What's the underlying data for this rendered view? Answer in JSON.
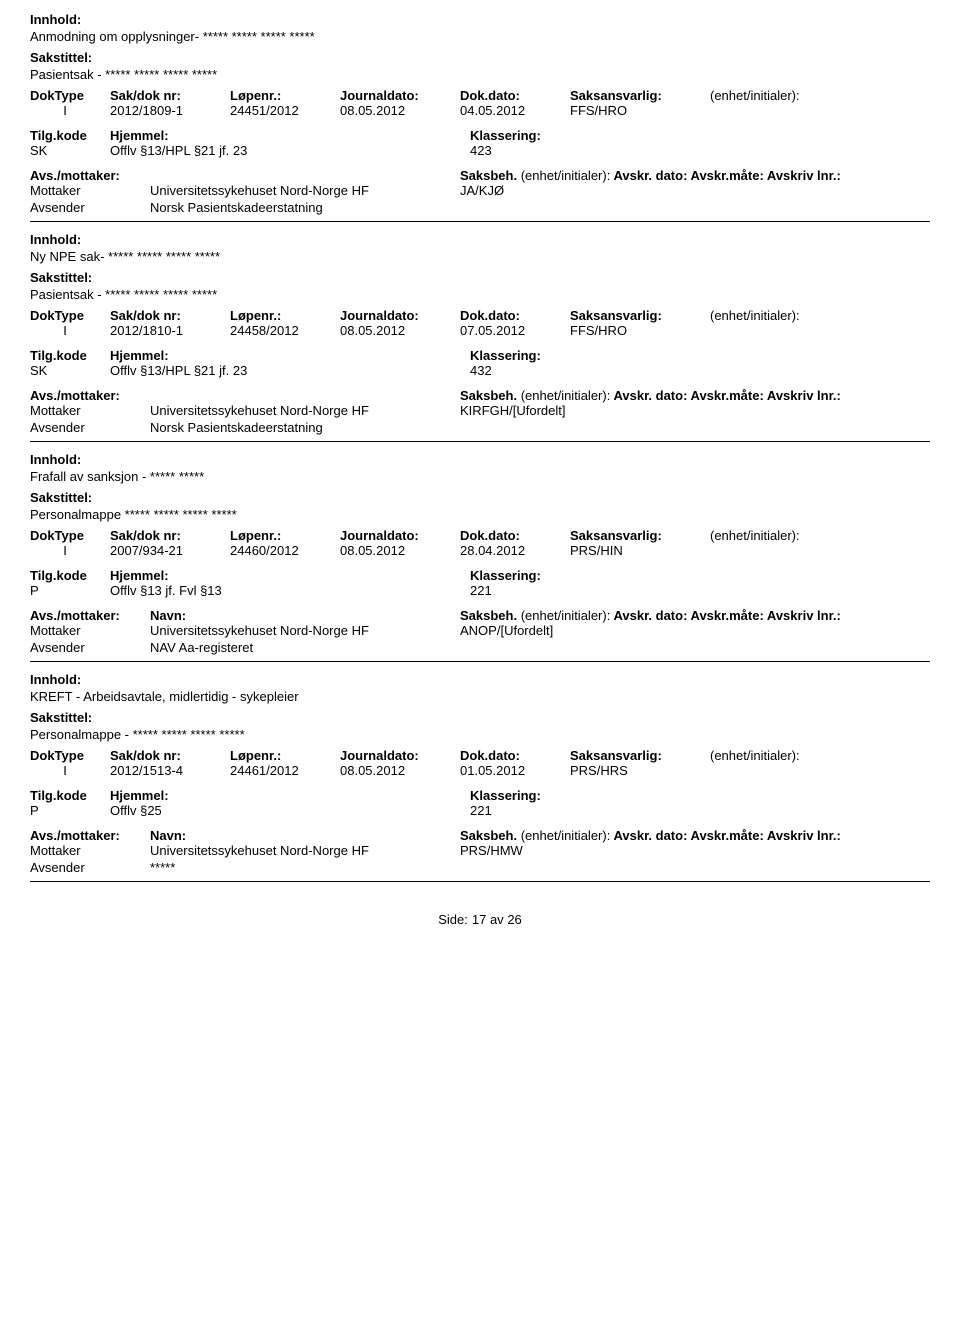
{
  "labels": {
    "innhold": "Innhold:",
    "sakstittel": "Sakstittel:",
    "doktype": "DokType",
    "sakdoknr": "Sak/dok nr:",
    "lopenr": "Løpenr.:",
    "journaldato": "Journaldato:",
    "dokdato": "Dok.dato:",
    "saksansvarlig": "Saksansvarlig:",
    "enhetinit": "(enhet/initialer):",
    "tilgkode": "Tilg.kode",
    "hjemmel": "Hjemmel:",
    "klassering": "Klassering:",
    "avsmottaker": "Avs./mottaker:",
    "navn": "Navn:",
    "saksbeh": "Saksbeh.",
    "saksbeh_ei": "(enhet/initialer):",
    "avskr_dato": "Avskr. dato:",
    "avskr_maate": "Avskr.måte:",
    "avskriv_lnr": "Avskriv lnr.:",
    "mottaker": "Mottaker",
    "avsender": "Avsender",
    "side": "Side:",
    "av": "av"
  },
  "entries": [
    {
      "innhold": "Anmodning om opplysninger- ***** ***** ***** *****",
      "sakstittel": "Pasientsak - ***** ***** ***** *****",
      "doktype": "I",
      "sakdoknr": "2012/1809-1",
      "lopenr": "24451/2012",
      "journaldato": "08.05.2012",
      "dokdato": "04.05.2012",
      "saksansvarlig": "FFS/HRO",
      "tilgkode": "SK",
      "hjemmel": "Offlv §13/HPL §21 jf. 23",
      "klassering": "423",
      "show_nav_labels": false,
      "mottaker_navn": "Universitetssykehuset Nord-Norge HF",
      "mottaker_saksbeh": "JA/KJØ",
      "avsender_navn": "Norsk Pasientskadeerstatning"
    },
    {
      "innhold": "Ny NPE sak- ***** ***** ***** *****",
      "sakstittel": "Pasientsak - ***** ***** ***** *****",
      "doktype": "I",
      "sakdoknr": "2012/1810-1",
      "lopenr": "24458/2012",
      "journaldato": "08.05.2012",
      "dokdato": "07.05.2012",
      "saksansvarlig": "FFS/HRO",
      "tilgkode": "SK",
      "hjemmel": "Offlv §13/HPL §21 jf. 23",
      "klassering": "432",
      "show_nav_labels": false,
      "mottaker_navn": "Universitetssykehuset Nord-Norge HF",
      "mottaker_saksbeh": "KIRFGH/[Ufordelt]",
      "avsender_navn": "Norsk Pasientskadeerstatning"
    },
    {
      "innhold": "Frafall av sanksjon - ***** *****",
      "sakstittel": "Personalmappe ***** ***** ***** *****",
      "doktype": "I",
      "sakdoknr": "2007/934-21",
      "lopenr": "24460/2012",
      "journaldato": "08.05.2012",
      "dokdato": "28.04.2012",
      "saksansvarlig": "PRS/HIN",
      "tilgkode": "P",
      "hjemmel": "Offlv §13 jf. Fvl §13",
      "klassering": "221",
      "show_nav_labels": true,
      "mottaker_navn": "Universitetssykehuset Nord-Norge HF",
      "mottaker_saksbeh": "ANOP/[Ufordelt]",
      "avsender_navn": "NAV Aa-registeret"
    },
    {
      "innhold": "KREFT - Arbeidsavtale, midlertidig - sykepleier",
      "sakstittel": "Personalmappe - ***** ***** ***** *****",
      "doktype": "I",
      "sakdoknr": "2012/1513-4",
      "lopenr": "24461/2012",
      "journaldato": "08.05.2012",
      "dokdato": "01.05.2012",
      "saksansvarlig": "PRS/HRS",
      "tilgkode": "P",
      "hjemmel": "Offlv §25",
      "klassering": "221",
      "show_nav_labels": true,
      "mottaker_navn": "Universitetssykehuset Nord-Norge HF",
      "mottaker_saksbeh": "PRS/HMW",
      "avsender_navn": "*****"
    }
  ],
  "footer": {
    "page": "17",
    "total": "26"
  },
  "layout": {
    "col_doktype_w": 70,
    "col_sakdoknr_w": 110,
    "col_lopenr_w": 100,
    "col_journaldato_w": 110,
    "col_dokdato_w": 100,
    "col_saksansvarlig_w": 130,
    "col_tilgkode_w": 70,
    "col_hjemmel_w": 350,
    "col_klassering_w": 200,
    "col_avs_role_w": 110,
    "col_avs_navn_w": 300,
    "col_saksbeh_w": 160
  }
}
